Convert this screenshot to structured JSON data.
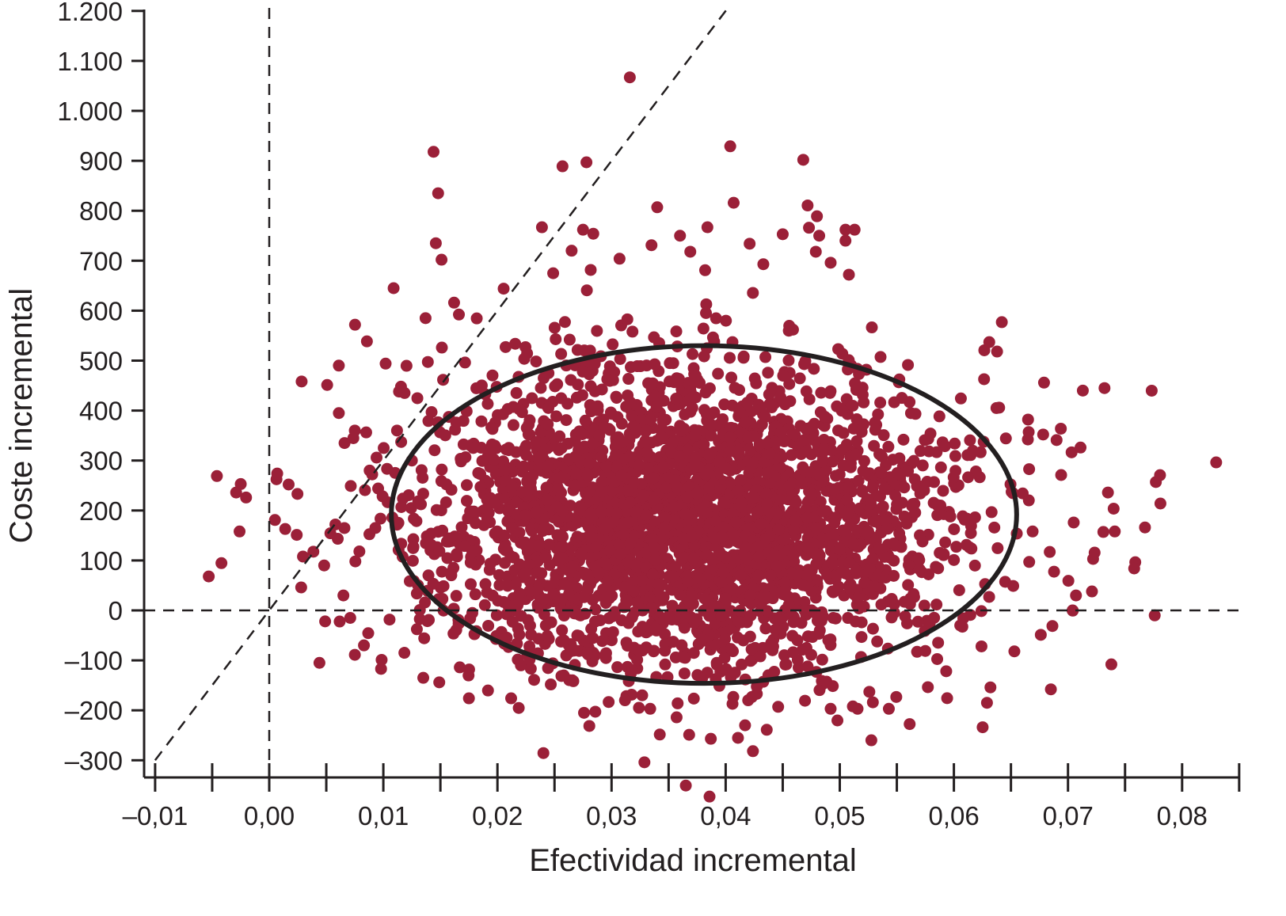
{
  "chart_data": {
    "type": "scatter",
    "title": "",
    "xlabel": "Efectividad incremental",
    "ylabel": "Coste incremental",
    "xlim": [
      -0.01,
      0.085
    ],
    "ylim": [
      -330,
      1220
    ],
    "x_ticks": [
      -0.01,
      0.0,
      0.01,
      0.02,
      0.03,
      0.04,
      0.05,
      0.06,
      0.07,
      0.08
    ],
    "x_tick_labels": [
      "–0,01",
      "0,00",
      "0,01",
      "0,02",
      "0,03",
      "0,04",
      "0,05",
      "0,06",
      "0,07",
      "0,08"
    ],
    "y_ticks": [
      -300,
      -200,
      -100,
      0,
      100,
      200,
      300,
      400,
      500,
      600,
      700,
      800,
      900,
      1000,
      1100,
      1200
    ],
    "y_tick_labels": [
      "–300",
      "–200",
      "–100",
      "0",
      "100",
      "200",
      "300",
      "400",
      "500",
      "600",
      "700",
      "800",
      "900",
      "1.000",
      "1.100",
      "1.200"
    ],
    "grid": false,
    "legend": "none",
    "point_color": "#9b2038",
    "reference_lines": {
      "vertical_x": 0,
      "horizontal_y": 0,
      "threshold_slope": 30000
    },
    "confidence_ellipse": {
      "center": [
        0.0381,
        192
      ],
      "radii": [
        0.0274,
        338
      ],
      "color": "#231f20"
    },
    "cloud": {
      "mean": [
        0.0365,
        185
      ],
      "sd": [
        0.0118,
        150
      ],
      "n": 3200
    },
    "outlier_points": [
      [
        -0.0053,
        68
      ],
      [
        -0.0029,
        236
      ],
      [
        -0.0026,
        158
      ],
      [
        0.0007,
        274
      ],
      [
        0.0005,
        181
      ],
      [
        0.0017,
        252
      ],
      [
        0.0014,
        163
      ],
      [
        0.0028,
        46
      ],
      [
        0.0044,
        -105
      ],
      [
        0.0049,
        -22
      ],
      [
        0.0061,
        395
      ],
      [
        0.0061,
        490
      ],
      [
        0.0083,
        -70
      ],
      [
        0.0098,
        -117
      ],
      [
        0.0109,
        645
      ],
      [
        0.0102,
        494
      ],
      [
        0.0144,
        918
      ],
      [
        0.0148,
        835
      ],
      [
        0.0146,
        735
      ],
      [
        0.0151,
        702
      ],
      [
        0.0162,
        616
      ],
      [
        0.0137,
        585
      ],
      [
        0.0316,
        1067
      ],
      [
        0.0257,
        889
      ],
      [
        0.0278,
        897
      ],
      [
        0.0404,
        929
      ],
      [
        0.0468,
        902
      ],
      [
        0.0407,
        816
      ],
      [
        0.034,
        807
      ],
      [
        0.0239,
        767
      ],
      [
        0.0275,
        762
      ],
      [
        0.0284,
        754
      ],
      [
        0.0265,
        720
      ],
      [
        0.0307,
        704
      ],
      [
        0.0335,
        731
      ],
      [
        0.036,
        750
      ],
      [
        0.0384,
        767
      ],
      [
        0.0369,
        718
      ],
      [
        0.0382,
        681
      ],
      [
        0.0421,
        734
      ],
      [
        0.0433,
        693
      ],
      [
        0.045,
        753
      ],
      [
        0.0473,
        766
      ],
      [
        0.048,
        789
      ],
      [
        0.0482,
        750
      ],
      [
        0.0479,
        718
      ],
      [
        0.0505,
        762
      ],
      [
        0.0513,
        762
      ],
      [
        0.0505,
        740
      ],
      [
        0.0492,
        696
      ],
      [
        0.0508,
        672
      ],
      [
        0.0642,
        577
      ],
      [
        0.0631,
        537
      ],
      [
        0.0732,
        445
      ],
      [
        0.0713,
        440
      ],
      [
        0.0777,
        257
      ],
      [
        0.0781,
        214
      ],
      [
        0.0758,
        84
      ],
      [
        0.0776,
        -10
      ],
      [
        0.0741,
        158
      ],
      [
        0.0735,
        236
      ],
      [
        0.0722,
        103
      ],
      [
        0.0721,
        38
      ],
      [
        0.0707,
        30
      ],
      [
        0.0704,
        0
      ],
      [
        0.0685,
        -158
      ],
      [
        0.0629,
        -185
      ],
      [
        0.0543,
        -197
      ],
      [
        0.0529,
        -184
      ],
      [
        0.0492,
        -197
      ],
      [
        0.0446,
        -193
      ],
      [
        0.0436,
        -239
      ],
      [
        0.0417,
        -230
      ],
      [
        0.0406,
        -187
      ],
      [
        0.0387,
        -257
      ],
      [
        0.0368,
        -249
      ],
      [
        0.0357,
        -214
      ],
      [
        0.0324,
        -195
      ],
      [
        0.0212,
        -176
      ],
      [
        0.0175,
        -176
      ],
      [
        0.0167,
        -114
      ],
      [
        0.0135,
        -135
      ],
      [
        0.0149,
        -144
      ],
      [
        0.0653,
        -82
      ],
      [
        0.069,
        341
      ],
      [
        0.0711,
        326
      ],
      [
        0.0694,
        271
      ],
      [
        0.0705,
        176
      ],
      [
        0.0684,
        117
      ],
      [
        0.0666,
        97
      ],
      [
        0.0669,
        158
      ],
      [
        0.0652,
        49
      ],
      [
        0.0679,
        456
      ],
      [
        0.0665,
        382
      ],
      [
        0.0058,
        172
      ],
      [
        0.0066,
        335
      ],
      [
        0.0075,
        360
      ],
      [
        0.0088,
        280
      ],
      [
        0.0093,
        165
      ],
      [
        0.0079,
        118
      ],
      [
        0.0065,
        30
      ],
      [
        0.0071,
        -15
      ],
      [
        0.0112,
        360
      ],
      [
        0.0125,
        300
      ]
    ]
  }
}
